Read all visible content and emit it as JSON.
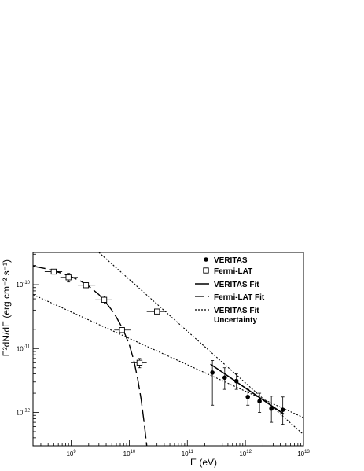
{
  "chart_data": {
    "type": "scatter",
    "xlabel": "E (eV)",
    "ylabel": "E²dN/dE (erg cm⁻² s⁻¹)",
    "xscale": "log",
    "yscale": "log",
    "xlim": [
      220000000.0,
      10000000000000.0
    ],
    "ylim": [
      3e-13,
      3.2e-10
    ],
    "grid": false,
    "legend_position": "top-right",
    "x_ticks": [
      {
        "value": 1000000000.0,
        "base": "10",
        "exp": "9"
      },
      {
        "value": 10000000000.0,
        "base": "10",
        "exp": "10"
      },
      {
        "value": 100000000000.0,
        "base": "10",
        "exp": "11"
      },
      {
        "value": 1000000000000.0,
        "base": "10",
        "exp": "12"
      },
      {
        "value": 10000000000000.0,
        "base": "10",
        "exp": "13"
      }
    ],
    "y_ticks": [
      {
        "value": 1e-12,
        "base": "10",
        "exp": "-12"
      },
      {
        "value": 1e-11,
        "base": "10",
        "exp": "-11"
      },
      {
        "value": 1e-10,
        "base": "10",
        "exp": "-10"
      }
    ],
    "legend": [
      {
        "label": "VERITAS",
        "style": "filled-circle"
      },
      {
        "label": "Fermi-LAT",
        "style": "open-square"
      },
      {
        "label": "VERITAS Fit",
        "style": "solid"
      },
      {
        "label": "Fermi-LAT Fit",
        "style": "long-dash"
      },
      {
        "label": "VERITAS Fit",
        "label2": "Uncertainty",
        "style": "dotted"
      }
    ],
    "series": [
      {
        "name": "VERITAS",
        "marker": "filled-circle",
        "points": [
          {
            "x": 270000000000.0,
            "y": 4.2e-12,
            "ylo": 1.3e-12,
            "yhi": 6.5e-12
          },
          {
            "x": 440000000000.0,
            "y": 3.5e-12,
            "ylo": 2.3e-12,
            "yhi": 5e-12
          },
          {
            "x": 700000000000.0,
            "y": 3.1e-12,
            "ylo": 2.3e-12,
            "yhi": 4e-12
          },
          {
            "x": 1100000000000.0,
            "y": 1.75e-12,
            "ylo": 1.3e-12,
            "yhi": 2.3e-12
          },
          {
            "x": 1750000000000.0,
            "y": 1.5e-12,
            "ylo": 1e-12,
            "yhi": 2e-12
          },
          {
            "x": 2800000000000.0,
            "y": 1.15e-12,
            "ylo": 7e-13,
            "yhi": 1.8e-12
          },
          {
            "x": 4400000000000.0,
            "y": 1.1e-12,
            "ylo": 6.5e-13,
            "yhi": 1.75e-12
          }
        ]
      },
      {
        "name": "Fermi-LAT",
        "marker": "open-square",
        "points": [
          {
            "x": 500000000.0,
            "y": 1.6e-10,
            "xlo": 350000000.0,
            "xhi": 700000000.0,
            "ylo": 1.5e-10,
            "yhi": 1.7e-10
          },
          {
            "x": 900000000.0,
            "y": 1.3e-10,
            "xlo": 650000000.0,
            "xhi": 1300000000.0,
            "ylo": 1.1e-10,
            "yhi": 1.5e-10
          },
          {
            "x": 1800000000.0,
            "y": 9.8e-11,
            "xlo": 1300000000.0,
            "xhi": 2600000000.0,
            "ylo": 9e-11,
            "yhi": 1.07e-10
          },
          {
            "x": 3700000000.0,
            "y": 5.8e-11,
            "xlo": 2600000000.0,
            "xhi": 5000000000.0,
            "ylo": 5e-11,
            "yhi": 6.6e-11
          },
          {
            "x": 7500000000.0,
            "y": 1.95e-11,
            "xlo": 5500000000.0,
            "xhi": 10500000000.0,
            "ylo": 1.8e-11,
            "yhi": 2.1e-11
          },
          {
            "x": 15000000000.0,
            "y": 6e-12,
            "xlo": 10500000000.0,
            "xhi": 20000000000.0,
            "ylo": 5e-12,
            "yhi": 7e-12
          },
          {
            "x": 30000000000.0,
            "y": 3.8e-11,
            "xlo": 20000000000.0,
            "xhi": 44000000000.0,
            "ylo": 3.5e-11,
            "yhi": 4.1e-11
          }
        ]
      }
    ],
    "fits": [
      {
        "name": "VERITAS Fit",
        "style": "solid",
        "x_range": [
          250000000000.0,
          4600000000000.0
        ],
        "points": [
          [
            250000000000.0,
            5.7e-12
          ],
          [
            4600000000000.0,
            9.4e-13
          ]
        ]
      },
      {
        "name": "Fermi-LAT Fit",
        "style": "long-dash",
        "points": [
          [
            220000000.0,
            1.95e-10
          ],
          [
            400000000.0,
            1.75e-10
          ],
          [
            700000000.0,
            1.5e-10
          ],
          [
            1000000000.0,
            1.33e-10
          ],
          [
            1500000000.0,
            1.12e-10
          ],
          [
            2000000000.0,
            9.5e-11
          ],
          [
            3000000000.0,
            7e-11
          ],
          [
            4000000000.0,
            5.2e-11
          ],
          [
            5000000000.0,
            4e-11
          ],
          [
            6000000000.0,
            3.1e-11
          ],
          [
            7000000000.0,
            2.4e-11
          ],
          [
            8000000000.0,
            1.9e-11
          ],
          [
            10000000000.0,
            1.15e-11
          ],
          [
            12000000000.0,
            6.5e-12
          ],
          [
            14000000000.0,
            3.3e-12
          ],
          [
            16000000000.0,
            1.6e-12
          ],
          [
            18000000000.0,
            7e-13
          ],
          [
            20000000000.0,
            3e-13
          ]
        ]
      },
      {
        "name": "VERITAS Fit Uncertainty",
        "style": "dotted",
        "points": [
          [
            3000000000.0,
            3.2e-10
          ],
          [
            10000000000000.0,
            4.5e-13
          ]
        ]
      },
      {
        "name": "VERITAS Fit Uncertainty",
        "style": "dotted",
        "points": [
          [
            220000000.0,
            7e-11
          ],
          [
            10000000000000.0,
            8.3e-13
          ]
        ]
      }
    ]
  }
}
